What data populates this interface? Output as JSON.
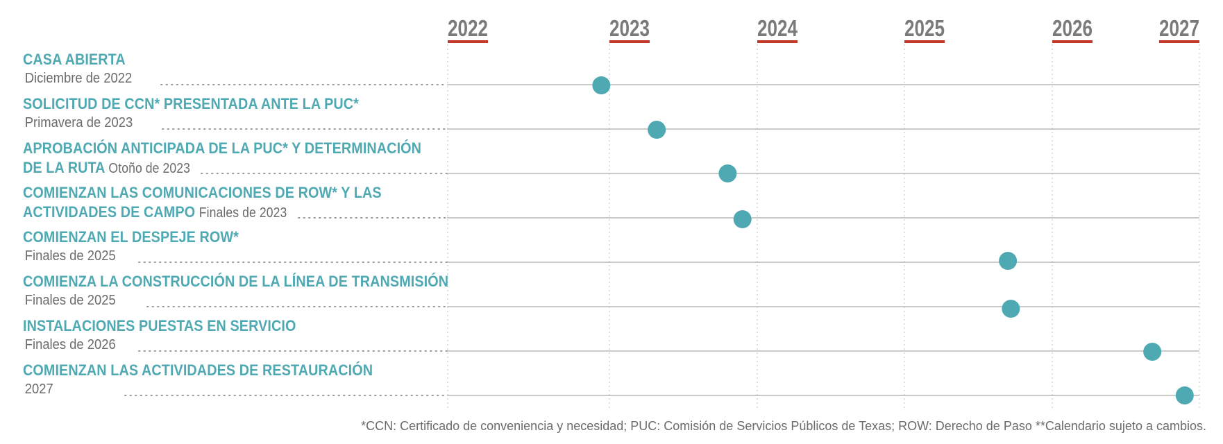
{
  "chart_data": {
    "type": "timeline",
    "x_axis": {
      "ticks": [
        "2022",
        "2023",
        "2024",
        "2025",
        "2026",
        "2027"
      ],
      "range": [
        2022.0,
        2027.0
      ]
    },
    "milestones": [
      {
        "title": "CASA ABIERTA",
        "date_label": "Diciembre de 2022",
        "x": 2022.95
      },
      {
        "title": "SOLICITUD DE CCN* PRESENTADA ANTE LA PUC*",
        "date_label": "Primavera de 2023",
        "x": 2023.32
      },
      {
        "title_line1": "APROBACIÓN ANTICIPADA DE LA PUC* Y DETERMINACIÓN",
        "title_line2": "DE LA RUTA",
        "date_label": "Otoño de 2023",
        "x": 2023.8
      },
      {
        "title_line1": "COMIENZAN LAS COMUNICACIONES DE ROW* Y LAS",
        "title_line2": "ACTIVIDADES DE CAMPO",
        "date_label": "Finales de 2023",
        "x": 2023.9
      },
      {
        "title": "COMIENZAN  EL DESPEJE ROW*",
        "date_label": "Finales de 2025",
        "x": 2025.7
      },
      {
        "title": "COMIENZA LA CONSTRUCCIÓN DE LA LÍNEA DE TRANSMISIÓN",
        "date_label": "Finales de 2025",
        "x": 2025.72
      },
      {
        "title": "INSTALACIONES PUESTAS EN SERVICIO",
        "date_label": "Finales de 2026",
        "x": 2026.68
      },
      {
        "title": "COMIENZAN LAS ACTIVIDADES DE RESTAURACIÓN",
        "date_label": "2027",
        "x": 2026.9
      }
    ],
    "footnote": "*CCN: Certificado de conveniencia y necesidad; PUC: Comisión de Servicios Públicos de Texas; ROW: Derecho de Paso  **Calendario sujeto a cambios.",
    "colors": {
      "dot": "#4ea9b3",
      "title": "#4ea9b3",
      "year_underline": "#c0392b",
      "year_text": "#7a7a7a"
    }
  }
}
